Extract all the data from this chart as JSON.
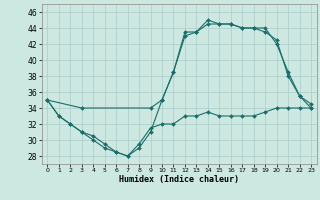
{
  "xlabel": "Humidex (Indice chaleur)",
  "bg_color": "#cce8e0",
  "grid_color": "#aacccc",
  "line_color": "#1a6e6a",
  "xlim": [
    -0.5,
    23.5
  ],
  "ylim": [
    27,
    47
  ],
  "xticks": [
    0,
    1,
    2,
    3,
    4,
    5,
    6,
    7,
    8,
    9,
    10,
    11,
    12,
    13,
    14,
    15,
    16,
    17,
    18,
    19,
    20,
    21,
    22,
    23
  ],
  "yticks": [
    28,
    30,
    32,
    34,
    36,
    38,
    40,
    42,
    44,
    46
  ],
  "line1_x": [
    0,
    1,
    2,
    3,
    4,
    5,
    6,
    7,
    8,
    9,
    10,
    11,
    12,
    13,
    14,
    15,
    16,
    17,
    18,
    19,
    20,
    21,
    22,
    23
  ],
  "line1_y": [
    35,
    33,
    32,
    31,
    30,
    29,
    28.5,
    28,
    29.5,
    31.5,
    32,
    32,
    33,
    33,
    33.5,
    33,
    33,
    33,
    33,
    33.5,
    34,
    34,
    34,
    34
  ],
  "line2_x": [
    0,
    1,
    2,
    3,
    4,
    5,
    6,
    7,
    8,
    9,
    10,
    11,
    12,
    13,
    14,
    15,
    16,
    17,
    18,
    19,
    20,
    21,
    22,
    23
  ],
  "line2_y": [
    35,
    33,
    32,
    31,
    30.5,
    29.5,
    28.5,
    28,
    29,
    31,
    35,
    38.5,
    43,
    43.5,
    45,
    44.5,
    44.5,
    44,
    44,
    43.5,
    42.5,
    38,
    35.5,
    34
  ],
  "line3_x": [
    0,
    3,
    9,
    10,
    11,
    12,
    13,
    14,
    15,
    16,
    17,
    18,
    19,
    20,
    21,
    22,
    23
  ],
  "line3_y": [
    35,
    34,
    34,
    35,
    38.5,
    43.5,
    43.5,
    44.5,
    44.5,
    44.5,
    44,
    44,
    44,
    42,
    38.5,
    35.5,
    34.5
  ]
}
